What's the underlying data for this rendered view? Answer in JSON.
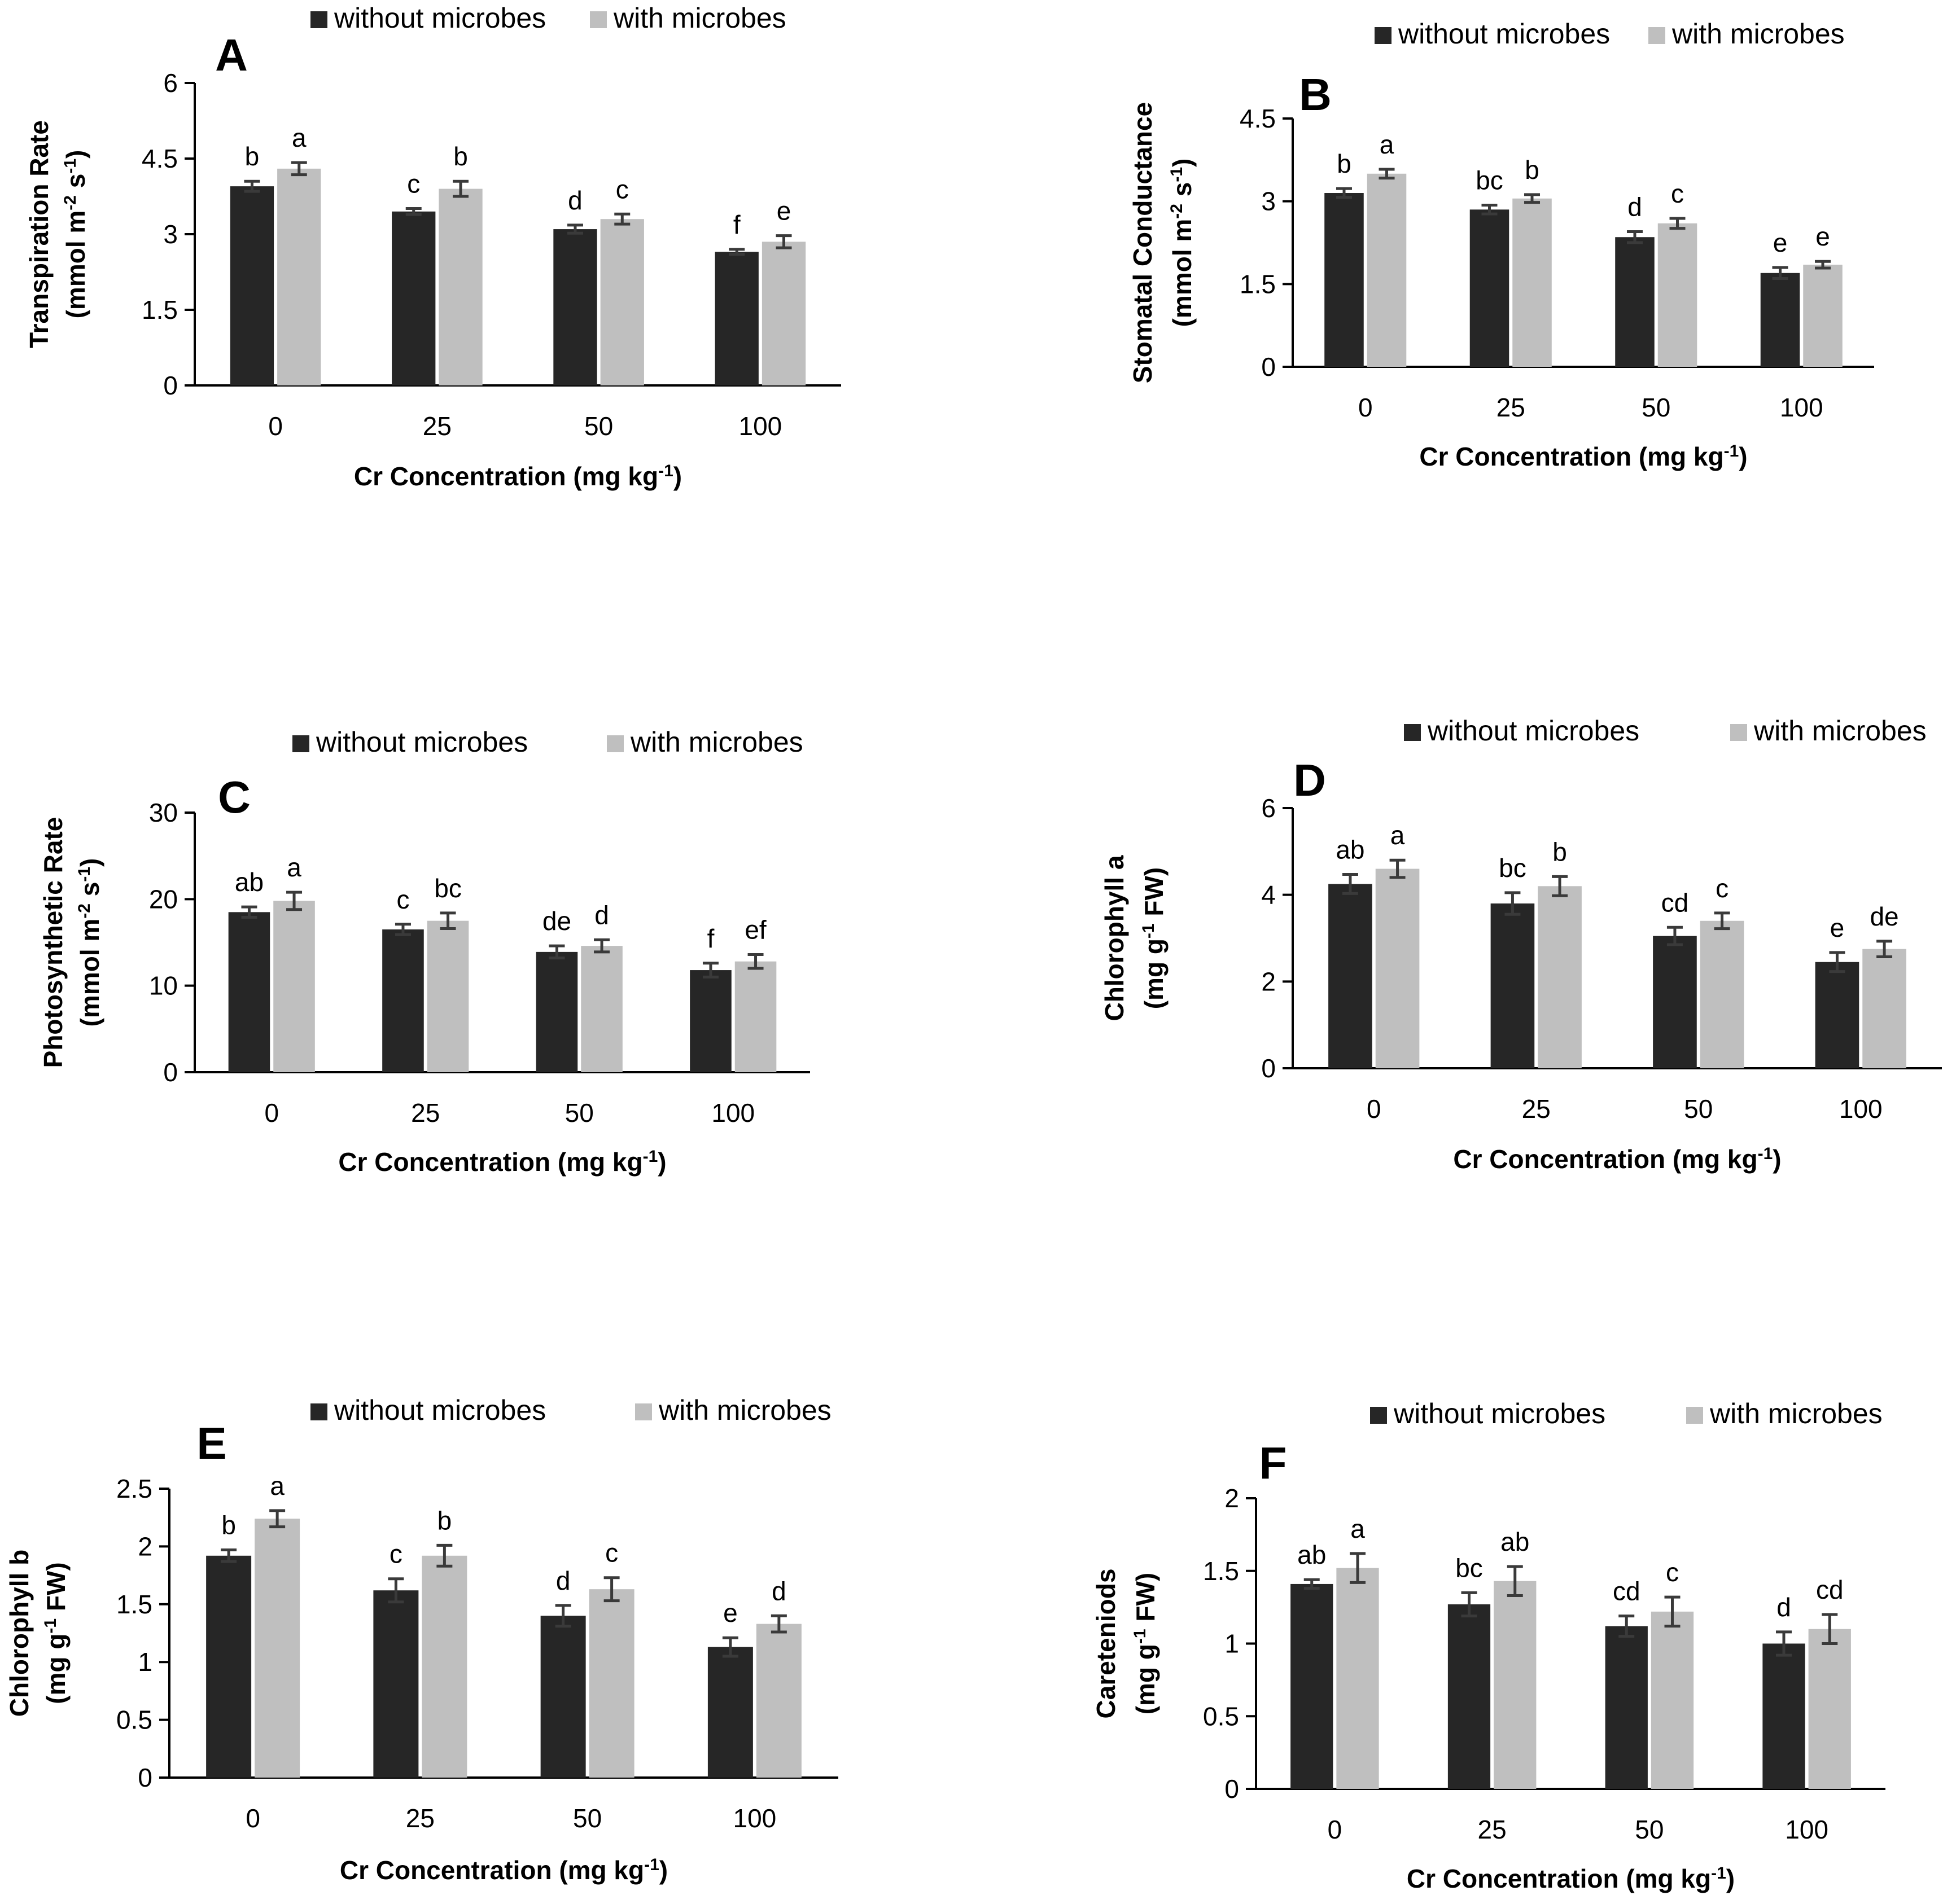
{
  "colors": {
    "without_microbes": "#262626",
    "with_microbes": "#bfbfbf",
    "axis": "#000000",
    "error_bar": "#3a3a3a"
  },
  "chart_data": [
    {
      "id": "A",
      "type": "bar",
      "panel_label": "A",
      "categories": [
        "0",
        "25",
        "50",
        "100"
      ],
      "series": [
        {
          "name": "without microbes",
          "values": [
            3.95,
            3.45,
            3.1,
            2.65
          ],
          "errors": [
            0.1,
            0.06,
            0.08,
            0.05
          ],
          "letters": [
            "b",
            "c",
            "d",
            "f"
          ]
        },
        {
          "name": "with microbes",
          "values": [
            4.3,
            3.9,
            3.3,
            2.85
          ],
          "errors": [
            0.12,
            0.15,
            0.1,
            0.12
          ],
          "letters": [
            "a",
            "b",
            "c",
            "e"
          ]
        }
      ],
      "xlabel": "Cr Concentration (mg kg-1)",
      "ylabel_line1": "Transpiration Rate",
      "ylabel_line2": "(mmol m-2 s-1)",
      "ylim": [
        0,
        6
      ],
      "yticks": [
        "0",
        "1.5",
        "3",
        "4.5",
        "6"
      ],
      "legend_position": "top"
    },
    {
      "id": "B",
      "type": "bar",
      "panel_label": "B",
      "categories": [
        "0",
        "25",
        "50",
        "100"
      ],
      "series": [
        {
          "name": "without microbes",
          "values": [
            3.15,
            2.85,
            2.35,
            1.7
          ],
          "errors": [
            0.08,
            0.08,
            0.1,
            0.1
          ],
          "letters": [
            "b",
            "bc",
            "d",
            "e"
          ]
        },
        {
          "name": "with microbes",
          "values": [
            3.5,
            3.05,
            2.6,
            1.85
          ],
          "errors": [
            0.08,
            0.07,
            0.09,
            0.06
          ],
          "letters": [
            "a",
            "b",
            "c",
            "e"
          ]
        }
      ],
      "xlabel": "Cr Concentration (mg kg-1)",
      "ylabel_line1": "Stomatal Conductance",
      "ylabel_line2": "(mmol m-2 s-1)",
      "ylim": [
        0,
        4.5
      ],
      "yticks": [
        "0",
        "1.5",
        "3",
        "4.5"
      ],
      "legend_position": "top"
    },
    {
      "id": "C",
      "type": "bar",
      "panel_label": "C",
      "categories": [
        "0",
        "25",
        "50",
        "100"
      ],
      "series": [
        {
          "name": "without microbes",
          "values": [
            18.5,
            16.5,
            13.9,
            11.8
          ],
          "errors": [
            0.6,
            0.6,
            0.7,
            0.8
          ],
          "letters": [
            "ab",
            "c",
            "de",
            "f"
          ]
        },
        {
          "name": "with microbes",
          "values": [
            19.8,
            17.5,
            14.6,
            12.8
          ],
          "errors": [
            1.0,
            0.9,
            0.7,
            0.8
          ],
          "letters": [
            "a",
            "bc",
            "d",
            "ef"
          ]
        }
      ],
      "xlabel": "Cr Concentration (mg kg-1)",
      "ylabel_line1": "Photosynthetic Rate",
      "ylabel_line2": "(mmol m-2 s-1)",
      "ylim": [
        0,
        30
      ],
      "yticks": [
        "0",
        "10",
        "20",
        "30"
      ],
      "legend_position": "top"
    },
    {
      "id": "D",
      "type": "bar",
      "panel_label": "D",
      "categories": [
        "0",
        "25",
        "50",
        "100"
      ],
      "series": [
        {
          "name": "without microbes",
          "values": [
            4.25,
            3.8,
            3.05,
            2.45
          ],
          "errors": [
            0.22,
            0.25,
            0.2,
            0.22
          ],
          "letters": [
            "ab",
            "bc",
            "cd",
            "e"
          ]
        },
        {
          "name": "with microbes",
          "values": [
            4.6,
            4.2,
            3.4,
            2.75
          ],
          "errors": [
            0.2,
            0.22,
            0.18,
            0.18
          ],
          "letters": [
            "a",
            "b",
            "c",
            "de"
          ]
        }
      ],
      "xlabel": "Cr Concentration (mg kg-1)",
      "ylabel_line1": "Chlorophyll a",
      "ylabel_line2": "(mg g-1 FW)",
      "ylim": [
        0,
        6
      ],
      "yticks": [
        "0",
        "2",
        "4",
        "6"
      ],
      "legend_position": "top"
    },
    {
      "id": "E",
      "type": "bar",
      "panel_label": "E",
      "categories": [
        "0",
        "25",
        "50",
        "100"
      ],
      "series": [
        {
          "name": "without microbes",
          "values": [
            1.92,
            1.62,
            1.4,
            1.13
          ],
          "errors": [
            0.05,
            0.1,
            0.09,
            0.08
          ],
          "letters": [
            "b",
            "c",
            "d",
            "e"
          ]
        },
        {
          "name": "with microbes",
          "values": [
            2.24,
            1.92,
            1.63,
            1.33
          ],
          "errors": [
            0.07,
            0.09,
            0.1,
            0.07
          ],
          "letters": [
            "a",
            "b",
            "c",
            "d"
          ]
        }
      ],
      "xlabel": "Cr Concentration (mg kg-1)",
      "ylabel_line1": "Chlorophyll b",
      "ylabel_line2": "(mg g-1 FW)",
      "ylim": [
        0,
        2.5
      ],
      "yticks": [
        "0",
        "0.5",
        "1",
        "1.5",
        "2",
        "2.5"
      ],
      "legend_position": "top"
    },
    {
      "id": "F",
      "type": "bar",
      "panel_label": "F",
      "categories": [
        "0",
        "25",
        "50",
        "100"
      ],
      "series": [
        {
          "name": "without microbes",
          "values": [
            1.41,
            1.27,
            1.12,
            1.0
          ],
          "errors": [
            0.03,
            0.08,
            0.07,
            0.08
          ],
          "letters": [
            "ab",
            "bc",
            "cd",
            "d"
          ]
        },
        {
          "name": "with microbes",
          "values": [
            1.52,
            1.43,
            1.22,
            1.1
          ],
          "errors": [
            0.1,
            0.1,
            0.1,
            0.1
          ],
          "letters": [
            "a",
            "ab",
            "c",
            "cd"
          ]
        }
      ],
      "xlabel": "Cr Concentration (mg kg-1)",
      "ylabel_line1": "Careteniods",
      "ylabel_line2": "(mg g-1 FW)",
      "ylim": [
        0,
        2
      ],
      "yticks": [
        "0",
        "0.5",
        "1",
        "1.5",
        "2"
      ],
      "legend_position": "top"
    }
  ]
}
